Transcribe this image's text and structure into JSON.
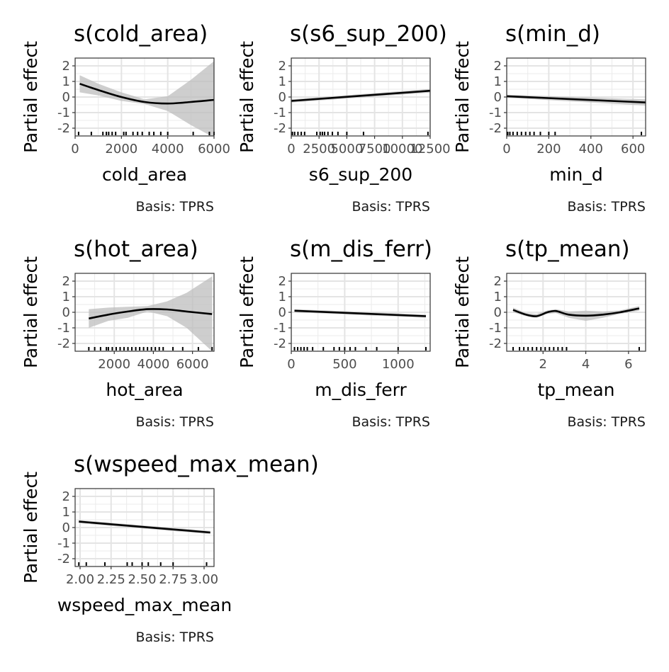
{
  "chart_data": [
    {
      "type": "line",
      "title": "s(cold_area)",
      "xlabel": "cold_area",
      "ylabel": "Partial effect",
      "caption": "Basis: TPRS",
      "xlim": [
        0,
        6000
      ],
      "ylim": [
        -2.5,
        2.5
      ],
      "xticks": [
        0,
        2000,
        4000,
        6000
      ],
      "xtick_labels": [
        "0",
        "2000",
        "4000",
        "6000"
      ],
      "yticks": [
        -2,
        -1,
        0,
        1,
        2
      ],
      "ytick_labels": [
        "-2",
        "-1",
        "0",
        "1",
        "2"
      ],
      "grid": true,
      "series": [
        {
          "x": [
            200,
            1000,
            2000,
            3000,
            4000,
            5000,
            6000
          ],
          "y": [
            0.85,
            0.45,
            0.0,
            -0.32,
            -0.42,
            -0.32,
            -0.18
          ]
        }
      ],
      "ci_lower": [
        0.3,
        0.1,
        -0.25,
        -0.45,
        -0.9,
        -1.8,
        -2.6
      ],
      "ci_upper": [
        1.4,
        0.85,
        0.3,
        -0.15,
        0.05,
        1.1,
        2.3
      ],
      "rug": [
        150,
        700,
        1200,
        1350,
        1450,
        1600,
        1750,
        2100,
        2200,
        2500,
        2700,
        2900,
        3200,
        3400,
        3700,
        4000,
        5100,
        5800,
        6000
      ]
    },
    {
      "type": "line",
      "title": "s(s6_sup_200)",
      "xlabel": "s6_sup_200",
      "ylabel": "Partial effect",
      "caption": "Basis: TPRS",
      "xlim": [
        0,
        12500
      ],
      "ylim": [
        -2.5,
        2.5
      ],
      "xticks": [
        0,
        2500,
        5000,
        7500,
        10000,
        12500
      ],
      "xtick_labels": [
        "0",
        "2500",
        "5000",
        "7500",
        "10000",
        "12500"
      ],
      "yticks": [
        -2,
        -1,
        0,
        1,
        2
      ],
      "ytick_labels": [
        "-2",
        "-1",
        "0",
        "1",
        "2"
      ],
      "grid": true,
      "series": [
        {
          "x": [
            0,
            12500
          ],
          "y": [
            -0.25,
            0.4
          ]
        }
      ],
      "ci_lower": [
        -0.35,
        0.28
      ],
      "ci_upper": [
        -0.15,
        0.52
      ],
      "rug": [
        100,
        300,
        600,
        900,
        1200,
        2300,
        2600,
        2800,
        3000,
        3300,
        3700,
        4200,
        5000,
        6500,
        12300
      ]
    },
    {
      "type": "line",
      "title": "s(min_d)",
      "xlabel": "min_d",
      "ylabel": "Partial effect",
      "caption": "Basis: TPRS",
      "xlim": [
        0,
        660
      ],
      "ylim": [
        -2.5,
        2.5
      ],
      "xticks": [
        0,
        200,
        400,
        600
      ],
      "xtick_labels": [
        "0",
        "200",
        "400",
        "600"
      ],
      "yticks": [
        -2,
        -1,
        0,
        1,
        2
      ],
      "ytick_labels": [
        "-2",
        "-1",
        "0",
        "1",
        "2"
      ],
      "grid": true,
      "series": [
        {
          "x": [
            0,
            660
          ],
          "y": [
            0.05,
            -0.35
          ]
        }
      ],
      "ci_lower": [
        -0.05,
        -0.55
      ],
      "ci_upper": [
        0.15,
        -0.15
      ],
      "rug": [
        5,
        15,
        30,
        50,
        70,
        90,
        110,
        130,
        160,
        200,
        230,
        640
      ]
    },
    {
      "type": "line",
      "title": "s(hot_area)",
      "xlabel": "hot_area",
      "ylabel": "Partial effect",
      "caption": "Basis: TPRS",
      "xlim": [
        0,
        7100
      ],
      "ylim": [
        -2.5,
        2.5
      ],
      "xticks": [
        2000,
        4000,
        6000
      ],
      "xtick_labels": [
        "2000",
        "4000",
        "6000"
      ],
      "yticks": [
        -2,
        -1,
        0,
        1,
        2
      ],
      "ytick_labels": [
        "-2",
        "-1",
        "0",
        "1",
        "2"
      ],
      "grid": true,
      "series": [
        {
          "x": [
            700,
            1700,
            2700,
            3700,
            4700,
            5700,
            7000
          ],
          "y": [
            -0.4,
            -0.15,
            0.05,
            0.2,
            0.18,
            0.05,
            -0.12
          ]
        }
      ],
      "ci_lower": [
        -1.0,
        -0.55,
        -0.35,
        0.05,
        -0.25,
        -1.0,
        -2.5
      ],
      "ci_upper": [
        0.2,
        0.3,
        0.35,
        0.4,
        0.7,
        1.25,
        2.3
      ],
      "rug": [
        700,
        1000,
        1300,
        1600,
        1700,
        1900,
        2100,
        2300,
        2500,
        2700,
        2900,
        3100,
        3300,
        3500,
        3700,
        3900,
        4100,
        4300,
        4500,
        5000,
        5500,
        6300,
        7000
      ]
    },
    {
      "type": "line",
      "title": "s(m_dis_ferr)",
      "xlabel": "m_dis_ferr",
      "ylabel": "Partial effect",
      "caption": "Basis: TPRS",
      "xlim": [
        0,
        1300
      ],
      "ylim": [
        -2.5,
        2.5
      ],
      "xticks": [
        0,
        500,
        1000
      ],
      "xtick_labels": [
        "0",
        "500",
        "1000"
      ],
      "yticks": [
        -2,
        -1,
        0,
        1,
        2
      ],
      "ytick_labels": [
        "-2",
        "-1",
        "0",
        "1",
        "2"
      ],
      "grid": true,
      "series": [
        {
          "x": [
            30,
            1260
          ],
          "y": [
            0.1,
            -0.25
          ]
        }
      ],
      "ci_lower": [
        0.0,
        -0.35
      ],
      "ci_upper": [
        0.2,
        -0.15
      ],
      "rug": [
        30,
        60,
        90,
        120,
        150,
        200,
        300,
        400,
        450,
        500,
        550,
        600,
        700,
        800,
        1000,
        1260
      ]
    },
    {
      "type": "line",
      "title": "s(tp_mean)",
      "xlabel": "tp_mean",
      "ylabel": "Partial effect",
      "caption": "Basis: TPRS",
      "xlim": [
        0.3,
        6.8
      ],
      "ylim": [
        -2.5,
        2.5
      ],
      "xticks": [
        2,
        4,
        6
      ],
      "xtick_labels": [
        "2",
        "4",
        "6"
      ],
      "yticks": [
        -2,
        -1,
        0,
        1,
        2
      ],
      "ytick_labels": [
        "-2",
        "-1",
        "0",
        "1",
        "2"
      ],
      "grid": true,
      "series": [
        {
          "x": [
            0.6,
            1.2,
            1.7,
            2.2,
            2.6,
            3.2,
            4.0,
            4.8,
            5.6,
            6.5
          ],
          "y": [
            0.15,
            -0.15,
            -0.25,
            0.0,
            0.08,
            -0.15,
            -0.22,
            -0.15,
            0.0,
            0.25
          ]
        }
      ],
      "ci_lower": [
        0.0,
        -0.25,
        -0.35,
        -0.1,
        -0.05,
        -0.35,
        -0.55,
        -0.35,
        -0.1,
        0.1
      ],
      "ci_upper": [
        0.3,
        -0.05,
        -0.1,
        0.12,
        0.2,
        0.05,
        0.1,
        0.05,
        0.12,
        0.4
      ],
      "rug": [
        0.6,
        0.9,
        1.1,
        1.3,
        1.5,
        1.7,
        1.9,
        2.1,
        2.3,
        2.5,
        2.7,
        2.9,
        3.1,
        6.5
      ]
    },
    {
      "type": "line",
      "title": "s(wspeed_max_mean)",
      "xlabel": "wspeed_max_mean",
      "ylabel": "Partial effect",
      "caption": "Basis: TPRS",
      "xlim": [
        1.96,
        3.08
      ],
      "ylim": [
        -2.5,
        2.5
      ],
      "xticks": [
        2.0,
        2.25,
        2.5,
        2.75,
        3.0
      ],
      "xtick_labels": [
        "2.00",
        "2.25",
        "2.50",
        "2.75",
        "3.00"
      ],
      "yticks": [
        -2,
        -1,
        0,
        1,
        2
      ],
      "ytick_labels": [
        "-2",
        "-1",
        "0",
        "1",
        "2"
      ],
      "grid": true,
      "series": [
        {
          "x": [
            1.99,
            3.05
          ],
          "y": [
            0.38,
            -0.32
          ]
        }
      ],
      "ci_lower": [
        0.28,
        -0.42
      ],
      "ci_upper": [
        0.48,
        -0.22
      ],
      "rug": [
        1.99,
        2.05,
        2.2,
        2.38,
        2.42,
        2.5,
        2.55,
        2.65,
        2.75,
        3.02
      ]
    }
  ]
}
